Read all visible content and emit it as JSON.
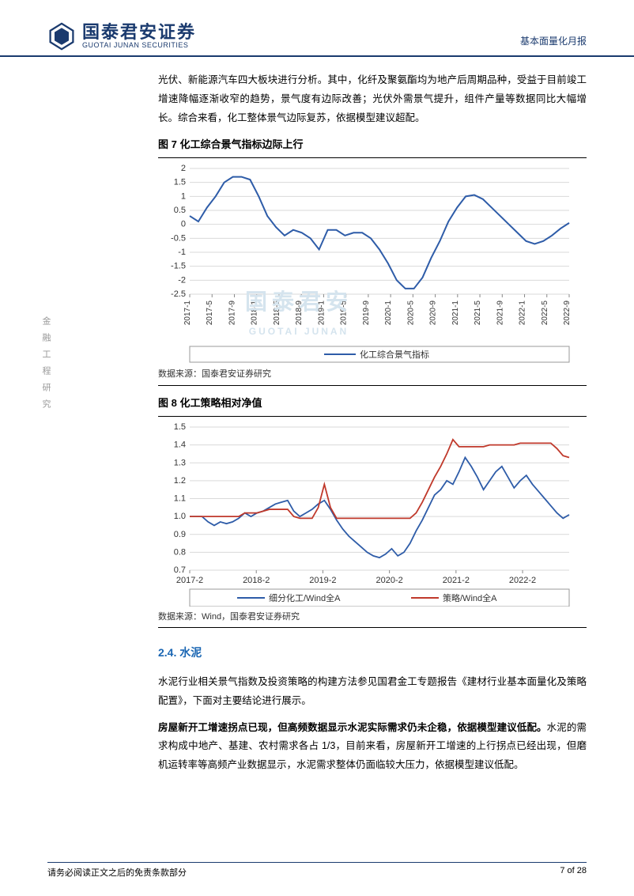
{
  "header": {
    "company_cn": "国泰君安证券",
    "company_en": "GUOTAI JUNAN SECURITIES",
    "doc_type": "基本面量化月报"
  },
  "sidebar_text": "金融工程研究",
  "body": {
    "para1": "光伏、新能源汽车四大板块进行分析。其中，化纤及聚氨酯均为地产后周期品种，受益于目前竣工增速降幅逐渐收窄的趋势，景气度有边际改善；光伏外需景气提升，组件产量等数据同比大幅增长。综合来看，化工整体景气边际复苏，依据模型建议超配。",
    "fig7_title": "图 7 化工综合景气指标边际上行",
    "fig7_source": "数据来源：国泰君安证券研究",
    "fig8_title": "图 8 化工策略相对净值",
    "fig8_source": "数据来源：Wind，国泰君安证券研究",
    "section24": "2.4.  水泥",
    "para2": "水泥行业相关景气指数及投资策略的构建方法参见国君金工专题报告《建材行业基本面量化及策略配置》，下面对主要结论进行展示。",
    "para3_bold": "房屋新开工增速拐点已现，但高频数据显示水泥实际需求仍未企稳，依据模型建议低配。",
    "para3_rest": "水泥的需求构成中地产、基建、农村需求各占 1/3，目前来看，房屋新开工增速的上行拐点已经出现，但磨机运转率等高频产业数据显示，水泥需求整体仍面临较大压力，依据模型建议低配。"
  },
  "watermark": {
    "main": "国泰君安",
    "sub": "GUOTAI JUNAN"
  },
  "chart7": {
    "type": "line",
    "ylim": [
      -2.5,
      2
    ],
    "yticks": [
      -2.5,
      -2,
      -1.5,
      -1,
      -0.5,
      0,
      0.5,
      1,
      1.5,
      2
    ],
    "x_labels": [
      "2017-1",
      "2017-5",
      "2017-9",
      "2018-1",
      "2018-5",
      "2018-9",
      "2019-1",
      "2019-5",
      "2019-9",
      "2020-1",
      "2020-5",
      "2020-9",
      "2021-1",
      "2021-5",
      "2021-9",
      "2022-1",
      "2022-5",
      "2022-9"
    ],
    "series_color": "#2e5ca8",
    "grid_color": "#d9d9d9",
    "legend_label": "化工综合景气指标",
    "data": [
      0.3,
      0.1,
      0.6,
      1.0,
      1.5,
      1.7,
      1.7,
      1.6,
      1.0,
      0.3,
      -0.1,
      -0.4,
      -0.2,
      -0.3,
      -0.5,
      -0.9,
      -0.2,
      -0.2,
      -0.4,
      -0.3,
      -0.3,
      -0.5,
      -0.9,
      -1.4,
      -2.0,
      -2.3,
      -2.3,
      -1.9,
      -1.2,
      -0.6,
      0.1,
      0.6,
      1.0,
      1.05,
      0.9,
      0.6,
      0.3,
      0.0,
      -0.3,
      -0.6,
      -0.7,
      -0.6,
      -0.4,
      -0.15,
      0.05
    ]
  },
  "chart8": {
    "type": "line",
    "ylim": [
      0.7,
      1.5
    ],
    "yticks": [
      0.7,
      0.8,
      0.9,
      1.0,
      1.1,
      1.2,
      1.3,
      1.4,
      1.5
    ],
    "x_labels": [
      "2017-2",
      "2018-2",
      "2019-2",
      "2020-2",
      "2021-2",
      "2022-2"
    ],
    "series": [
      {
        "label": "细分化工/Wind全A",
        "color": "#2e5ca8"
      },
      {
        "label": "策略/Wind全A",
        "color": "#c0392b"
      }
    ],
    "grid_color": "#d9d9d9",
    "blue_data": [
      1.0,
      1.0,
      1.0,
      0.97,
      0.95,
      0.97,
      0.96,
      0.97,
      0.99,
      1.02,
      1.0,
      1.02,
      1.03,
      1.05,
      1.07,
      1.08,
      1.09,
      1.03,
      1.0,
      1.02,
      1.04,
      1.07,
      1.09,
      1.04,
      0.98,
      0.93,
      0.89,
      0.86,
      0.83,
      0.8,
      0.78,
      0.77,
      0.79,
      0.82,
      0.78,
      0.8,
      0.85,
      0.92,
      0.98,
      1.05,
      1.12,
      1.15,
      1.2,
      1.18,
      1.25,
      1.33,
      1.28,
      1.22,
      1.15,
      1.2,
      1.25,
      1.28,
      1.22,
      1.16,
      1.2,
      1.23,
      1.18,
      1.14,
      1.1,
      1.06,
      1.02,
      0.99,
      1.01
    ],
    "red_data": [
      1.0,
      1.0,
      1.0,
      1.0,
      1.0,
      1.0,
      1.0,
      1.0,
      1.0,
      1.02,
      1.02,
      1.02,
      1.03,
      1.04,
      1.04,
      1.04,
      1.04,
      1.0,
      0.99,
      0.99,
      0.99,
      1.05,
      1.18,
      1.05,
      0.99,
      0.99,
      0.99,
      0.99,
      0.99,
      0.99,
      0.99,
      0.99,
      0.99,
      0.99,
      0.99,
      0.99,
      0.99,
      1.02,
      1.08,
      1.15,
      1.22,
      1.28,
      1.35,
      1.43,
      1.39,
      1.39,
      1.39,
      1.39,
      1.39,
      1.4,
      1.4,
      1.4,
      1.4,
      1.4,
      1.41,
      1.41,
      1.41,
      1.41,
      1.41,
      1.41,
      1.38,
      1.34,
      1.33
    ]
  },
  "footer": {
    "left": "请务必阅读正文之后的免责条款部分",
    "right": "7 of 28"
  }
}
